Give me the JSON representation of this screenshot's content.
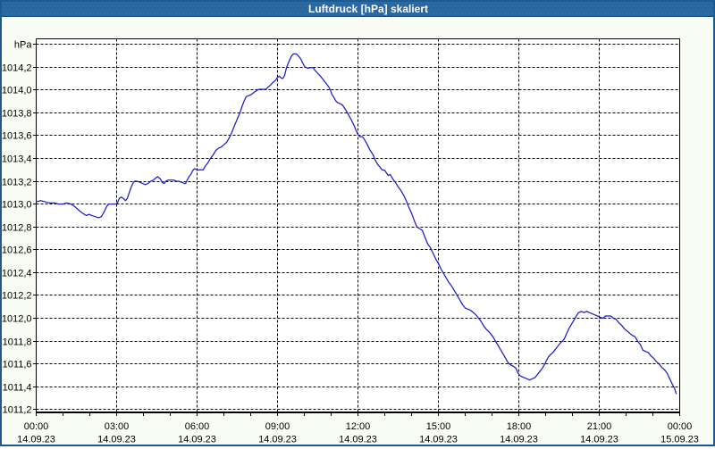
{
  "window": {
    "title": "Luftdruck [hPa] skaliert"
  },
  "colors": {
    "titlebar_bg": "#2a669f",
    "titlebar_dot": "#306ca9",
    "titlebar_text": "#ffffff",
    "window_border": "#1d5a8d",
    "window_bg": "#f9fcf4",
    "plot_bg": "#ffffff",
    "grid": "#000000",
    "frame": "#000000",
    "line": "#1c1cd0",
    "label": "#000000"
  },
  "chart_data": {
    "type": "line",
    "title": "Luftdruck [hPa] skaliert",
    "xlabel": "",
    "ylabel": "hPa",
    "ylim": [
      1011.2,
      1014.4
    ],
    "y_tick_step": 0.2,
    "y_tick_labels": [
      "hPa",
      "1014,2",
      "1014,0",
      "1013,8",
      "1013,6",
      "1013,4",
      "1013,2",
      "1013,0",
      "1012,8",
      "1012,6",
      "1012,4",
      "1012,2",
      "1012,0",
      "1011,8",
      "1011,6",
      "1011,4",
      "1011,2"
    ],
    "xlim_hours": [
      0,
      24
    ],
    "x_major_tick_hours": 3,
    "x_minor_tick_hours": 1,
    "x_ticks": [
      {
        "time": "00:00",
        "date": "14.09.23"
      },
      {
        "time": "03:00",
        "date": "14.09.23"
      },
      {
        "time": "06:00",
        "date": "14.09.23"
      },
      {
        "time": "09:00",
        "date": "14.09.23"
      },
      {
        "time": "12:00",
        "date": "14.09.23"
      },
      {
        "time": "15:00",
        "date": "14.09.23"
      },
      {
        "time": "18:00",
        "date": "14.09.23"
      },
      {
        "time": "21:00",
        "date": "14.09.23"
      },
      {
        "time": "00:00",
        "date": "15.09.23"
      }
    ],
    "grid": "dashed",
    "legend": "none",
    "series": [
      {
        "name": "Luftdruck [hPa]",
        "unit": "hPa",
        "points": [
          [
            0.0,
            1013.02
          ],
          [
            0.17,
            1013.03
          ],
          [
            0.33,
            1013.02
          ],
          [
            0.5,
            1013.01
          ],
          [
            0.67,
            1013.01
          ],
          [
            0.83,
            1013.0
          ],
          [
            1.0,
            1013.0
          ],
          [
            1.13,
            1013.01
          ],
          [
            1.3,
            1013.0
          ],
          [
            1.43,
            1012.98
          ],
          [
            1.57,
            1012.95
          ],
          [
            1.73,
            1012.92
          ],
          [
            1.87,
            1012.9
          ],
          [
            1.97,
            1012.91
          ],
          [
            2.07,
            1012.9
          ],
          [
            2.2,
            1012.89
          ],
          [
            2.33,
            1012.88
          ],
          [
            2.43,
            1012.89
          ],
          [
            2.53,
            1012.93
          ],
          [
            2.63,
            1012.98
          ],
          [
            2.7,
            1013.0
          ],
          [
            2.83,
            1013.0
          ],
          [
            2.97,
            1013.0
          ],
          [
            3.03,
            1013.01
          ],
          [
            3.1,
            1013.05
          ],
          [
            3.17,
            1013.06
          ],
          [
            3.25,
            1013.05
          ],
          [
            3.33,
            1013.03
          ],
          [
            3.4,
            1013.05
          ],
          [
            3.47,
            1013.1
          ],
          [
            3.53,
            1013.14
          ],
          [
            3.6,
            1013.18
          ],
          [
            3.67,
            1013.2
          ],
          [
            3.77,
            1013.2
          ],
          [
            3.87,
            1013.19
          ],
          [
            3.97,
            1013.18
          ],
          [
            4.07,
            1013.17
          ],
          [
            4.17,
            1013.18
          ],
          [
            4.27,
            1013.2
          ],
          [
            4.37,
            1013.21
          ],
          [
            4.47,
            1013.23
          ],
          [
            4.53,
            1013.24
          ],
          [
            4.63,
            1013.22
          ],
          [
            4.7,
            1013.19
          ],
          [
            4.77,
            1013.18
          ],
          [
            4.83,
            1013.2
          ],
          [
            4.93,
            1013.21
          ],
          [
            5.03,
            1013.21
          ],
          [
            5.13,
            1013.21
          ],
          [
            5.23,
            1013.2
          ],
          [
            5.33,
            1013.2
          ],
          [
            5.43,
            1013.19
          ],
          [
            5.53,
            1013.18
          ],
          [
            5.57,
            1013.18
          ],
          [
            5.63,
            1013.21
          ],
          [
            5.7,
            1013.24
          ],
          [
            5.77,
            1013.26
          ],
          [
            5.83,
            1013.29
          ],
          [
            5.9,
            1013.31
          ],
          [
            6.0,
            1013.3
          ],
          [
            6.13,
            1013.3
          ],
          [
            6.23,
            1013.3
          ],
          [
            6.3,
            1013.33
          ],
          [
            6.4,
            1013.36
          ],
          [
            6.5,
            1013.4
          ],
          [
            6.6,
            1013.43
          ],
          [
            6.7,
            1013.47
          ],
          [
            6.8,
            1013.49
          ],
          [
            6.9,
            1013.5
          ],
          [
            7.0,
            1013.52
          ],
          [
            7.1,
            1013.54
          ],
          [
            7.2,
            1013.58
          ],
          [
            7.3,
            1013.63
          ],
          [
            7.4,
            1013.69
          ],
          [
            7.5,
            1013.745
          ],
          [
            7.6,
            1013.8
          ],
          [
            7.67,
            1013.85
          ],
          [
            7.75,
            1013.9
          ],
          [
            7.83,
            1013.94
          ],
          [
            7.93,
            1013.95
          ],
          [
            8.03,
            1013.96
          ],
          [
            8.13,
            1013.98
          ],
          [
            8.23,
            1013.995
          ],
          [
            8.3,
            1014.005
          ],
          [
            8.43,
            1014.005
          ],
          [
            8.57,
            1014.005
          ],
          [
            8.63,
            1014.02
          ],
          [
            8.73,
            1014.04
          ],
          [
            8.83,
            1014.065
          ],
          [
            8.93,
            1014.085
          ],
          [
            9.0,
            1014.11
          ],
          [
            9.07,
            1014.12
          ],
          [
            9.13,
            1014.105
          ],
          [
            9.2,
            1014.1
          ],
          [
            9.27,
            1014.13
          ],
          [
            9.33,
            1014.19
          ],
          [
            9.43,
            1014.25
          ],
          [
            9.53,
            1014.3
          ],
          [
            9.6,
            1014.315
          ],
          [
            9.7,
            1014.315
          ],
          [
            9.77,
            1014.3
          ],
          [
            9.87,
            1014.27
          ],
          [
            9.97,
            1014.22
          ],
          [
            10.03,
            1014.2
          ],
          [
            10.13,
            1014.19
          ],
          [
            10.23,
            1014.195
          ],
          [
            10.33,
            1014.195
          ],
          [
            10.4,
            1014.17
          ],
          [
            10.5,
            1014.145
          ],
          [
            10.6,
            1014.12
          ],
          [
            10.7,
            1014.09
          ],
          [
            10.8,
            1014.06
          ],
          [
            10.9,
            1014.03
          ],
          [
            10.97,
            1014.0
          ],
          [
            11.03,
            1013.96
          ],
          [
            11.1,
            1013.935
          ],
          [
            11.17,
            1013.905
          ],
          [
            11.23,
            1013.89
          ],
          [
            11.33,
            1013.88
          ],
          [
            11.43,
            1013.865
          ],
          [
            11.5,
            1013.84
          ],
          [
            11.57,
            1013.815
          ],
          [
            11.63,
            1013.79
          ],
          [
            11.7,
            1013.76
          ],
          [
            11.77,
            1013.73
          ],
          [
            11.87,
            1013.68
          ],
          [
            11.93,
            1013.645
          ],
          [
            12.0,
            1013.61
          ],
          [
            12.07,
            1013.59
          ],
          [
            12.17,
            1013.59
          ],
          [
            12.23,
            1013.57
          ],
          [
            12.33,
            1013.53
          ],
          [
            12.43,
            1013.48
          ],
          [
            12.5,
            1013.455
          ],
          [
            12.57,
            1013.43
          ],
          [
            12.63,
            1013.39
          ],
          [
            12.73,
            1013.35
          ],
          [
            12.83,
            1013.32
          ],
          [
            12.9,
            1013.3
          ],
          [
            13.0,
            1013.295
          ],
          [
            13.07,
            1013.27
          ],
          [
            13.13,
            1013.25
          ],
          [
            13.2,
            1013.26
          ],
          [
            13.3,
            1013.22
          ],
          [
            13.4,
            1013.19
          ],
          [
            13.5,
            1013.15
          ],
          [
            13.6,
            1013.12
          ],
          [
            13.7,
            1013.08
          ],
          [
            13.8,
            1013.03
          ],
          [
            13.9,
            1012.97
          ],
          [
            14.0,
            1012.92
          ],
          [
            14.1,
            1012.855
          ],
          [
            14.2,
            1012.8
          ],
          [
            14.3,
            1012.785
          ],
          [
            14.4,
            1012.77
          ],
          [
            14.5,
            1012.71
          ],
          [
            14.6,
            1012.65
          ],
          [
            14.7,
            1012.62
          ],
          [
            14.8,
            1012.57
          ],
          [
            14.9,
            1012.52
          ],
          [
            15.0,
            1012.48
          ],
          [
            15.1,
            1012.43
          ],
          [
            15.2,
            1012.39
          ],
          [
            15.3,
            1012.35
          ],
          [
            15.4,
            1012.31
          ],
          [
            15.5,
            1012.28
          ],
          [
            15.6,
            1012.24
          ],
          [
            15.7,
            1012.2
          ],
          [
            15.8,
            1012.16
          ],
          [
            15.9,
            1012.12
          ],
          [
            16.0,
            1012.09
          ],
          [
            16.1,
            1012.08
          ],
          [
            16.2,
            1012.07
          ],
          [
            16.3,
            1012.05
          ],
          [
            16.4,
            1012.03
          ],
          [
            16.5,
            1012.0
          ],
          [
            16.6,
            1011.97
          ],
          [
            16.7,
            1011.93
          ],
          [
            16.8,
            1011.9
          ],
          [
            16.93,
            1011.87
          ],
          [
            17.03,
            1011.84
          ],
          [
            17.13,
            1011.8
          ],
          [
            17.23,
            1011.76
          ],
          [
            17.33,
            1011.72
          ],
          [
            17.43,
            1011.68
          ],
          [
            17.53,
            1011.64
          ],
          [
            17.6,
            1011.61
          ],
          [
            17.7,
            1011.59
          ],
          [
            17.8,
            1011.58
          ],
          [
            17.9,
            1011.56
          ],
          [
            17.97,
            1011.52
          ],
          [
            18.03,
            1011.5
          ],
          [
            18.1,
            1011.49
          ],
          [
            18.2,
            1011.48
          ],
          [
            18.3,
            1011.47
          ],
          [
            18.4,
            1011.46
          ],
          [
            18.5,
            1011.47
          ],
          [
            18.6,
            1011.48
          ],
          [
            18.67,
            1011.5
          ],
          [
            18.77,
            1011.53
          ],
          [
            18.87,
            1011.56
          ],
          [
            18.97,
            1011.6
          ],
          [
            19.03,
            1011.63
          ],
          [
            19.1,
            1011.66
          ],
          [
            19.17,
            1011.68
          ],
          [
            19.27,
            1011.7
          ],
          [
            19.37,
            1011.73
          ],
          [
            19.47,
            1011.76
          ],
          [
            19.57,
            1011.79
          ],
          [
            19.63,
            1011.8
          ],
          [
            19.7,
            1011.82
          ],
          [
            19.77,
            1011.86
          ],
          [
            19.87,
            1011.91
          ],
          [
            19.97,
            1011.95
          ],
          [
            20.07,
            1011.99
          ],
          [
            20.17,
            1012.03
          ],
          [
            20.23,
            1012.05
          ],
          [
            20.33,
            1012.06
          ],
          [
            20.43,
            1012.05
          ],
          [
            20.53,
            1012.06
          ],
          [
            20.63,
            1012.05
          ],
          [
            20.73,
            1012.04
          ],
          [
            20.83,
            1012.03
          ],
          [
            20.93,
            1012.02
          ],
          [
            21.03,
            1012.01
          ],
          [
            21.13,
            1012.0
          ],
          [
            21.23,
            1012.02
          ],
          [
            21.33,
            1012.02
          ],
          [
            21.43,
            1012.02
          ],
          [
            21.53,
            1012.0
          ],
          [
            21.63,
            1011.99
          ],
          [
            21.73,
            1011.96
          ],
          [
            21.83,
            1011.94
          ],
          [
            21.93,
            1011.91
          ],
          [
            22.03,
            1011.89
          ],
          [
            22.13,
            1011.87
          ],
          [
            22.23,
            1011.85
          ],
          [
            22.33,
            1011.84
          ],
          [
            22.43,
            1011.8
          ],
          [
            22.53,
            1011.77
          ],
          [
            22.63,
            1011.72
          ],
          [
            22.73,
            1011.71
          ],
          [
            22.83,
            1011.7
          ],
          [
            22.93,
            1011.67
          ],
          [
            23.03,
            1011.65
          ],
          [
            23.13,
            1011.62
          ],
          [
            23.23,
            1011.6
          ],
          [
            23.33,
            1011.57
          ],
          [
            23.43,
            1011.55
          ],
          [
            23.53,
            1011.52
          ],
          [
            23.63,
            1011.47
          ],
          [
            23.73,
            1011.42
          ],
          [
            23.8,
            1011.39
          ],
          [
            23.87,
            1011.34
          ]
        ]
      }
    ]
  }
}
